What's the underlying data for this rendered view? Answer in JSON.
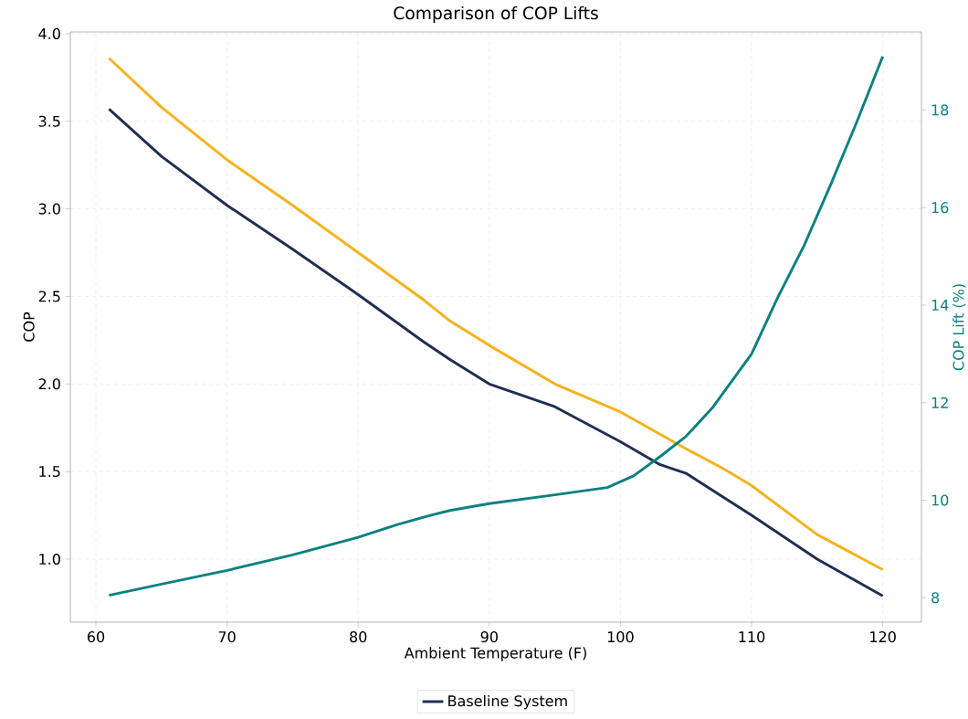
{
  "chart_data": {
    "type": "line",
    "title": "Comparison of COP Lifts",
    "xlabel": "Ambient Temperature (F)",
    "ylabel": "COP",
    "y2label": "COP Lift (%)",
    "xlim": [
      58.05,
      122.95
    ],
    "ylim": [
      0.64,
      4.01
    ],
    "y2lim": [
      7.5,
      19.6
    ],
    "xticks": [
      60,
      70,
      80,
      90,
      100,
      110,
      120
    ],
    "yticks": [
      {
        "value": 1,
        "label": "1.0"
      },
      {
        "value": 1.5,
        "label": "1.5"
      },
      {
        "value": 2,
        "label": "2.0"
      },
      {
        "value": 2.5,
        "label": "2.5"
      },
      {
        "value": 3,
        "label": "3.0"
      },
      {
        "value": 3.5,
        "label": "3.5"
      },
      {
        "value": 4,
        "label": "4.0"
      }
    ],
    "y2ticks": [
      8,
      10,
      12,
      14,
      16,
      18
    ],
    "grid": true,
    "legend": "bottom",
    "line_style": "solid",
    "series": [
      {
        "color": "#f5b21c",
        "x": [
          61,
          65,
          70,
          75,
          80,
          85,
          87,
          90,
          95,
          100,
          105,
          108,
          110,
          115,
          120
        ],
        "values": [
          3.86,
          3.58,
          3.28,
          3.02,
          2.75,
          2.48,
          2.36,
          2.22,
          2.0,
          1.84,
          1.63,
          1.51,
          1.42,
          1.14,
          0.94
        ]
      },
      {
        "name": "Baseline System",
        "color": "#1f2f52",
        "x": [
          61,
          65,
          70,
          75,
          80,
          85,
          87,
          90,
          95,
          100,
          103,
          105,
          110,
          115,
          120
        ],
        "values": [
          3.57,
          3.3,
          3.02,
          2.77,
          2.51,
          2.24,
          2.14,
          2.0,
          1.87,
          1.67,
          1.54,
          1.49,
          1.25,
          1.0,
          0.79
        ]
      },
      {
        "color": "#0d8080",
        "axis": "y2",
        "x": [
          61,
          65,
          70,
          75,
          80,
          83,
          85.5,
          87,
          90,
          95,
          99,
          101,
          103,
          105,
          107,
          109,
          110,
          112,
          114,
          116,
          118,
          120
        ],
        "values": [
          8.05,
          8.28,
          8.56,
          8.88,
          9.24,
          9.5,
          9.69,
          9.79,
          9.93,
          10.11,
          10.26,
          10.5,
          10.89,
          11.31,
          11.89,
          12.63,
          13.0,
          14.16,
          15.22,
          16.45,
          17.74,
          19.1
        ]
      }
    ]
  }
}
